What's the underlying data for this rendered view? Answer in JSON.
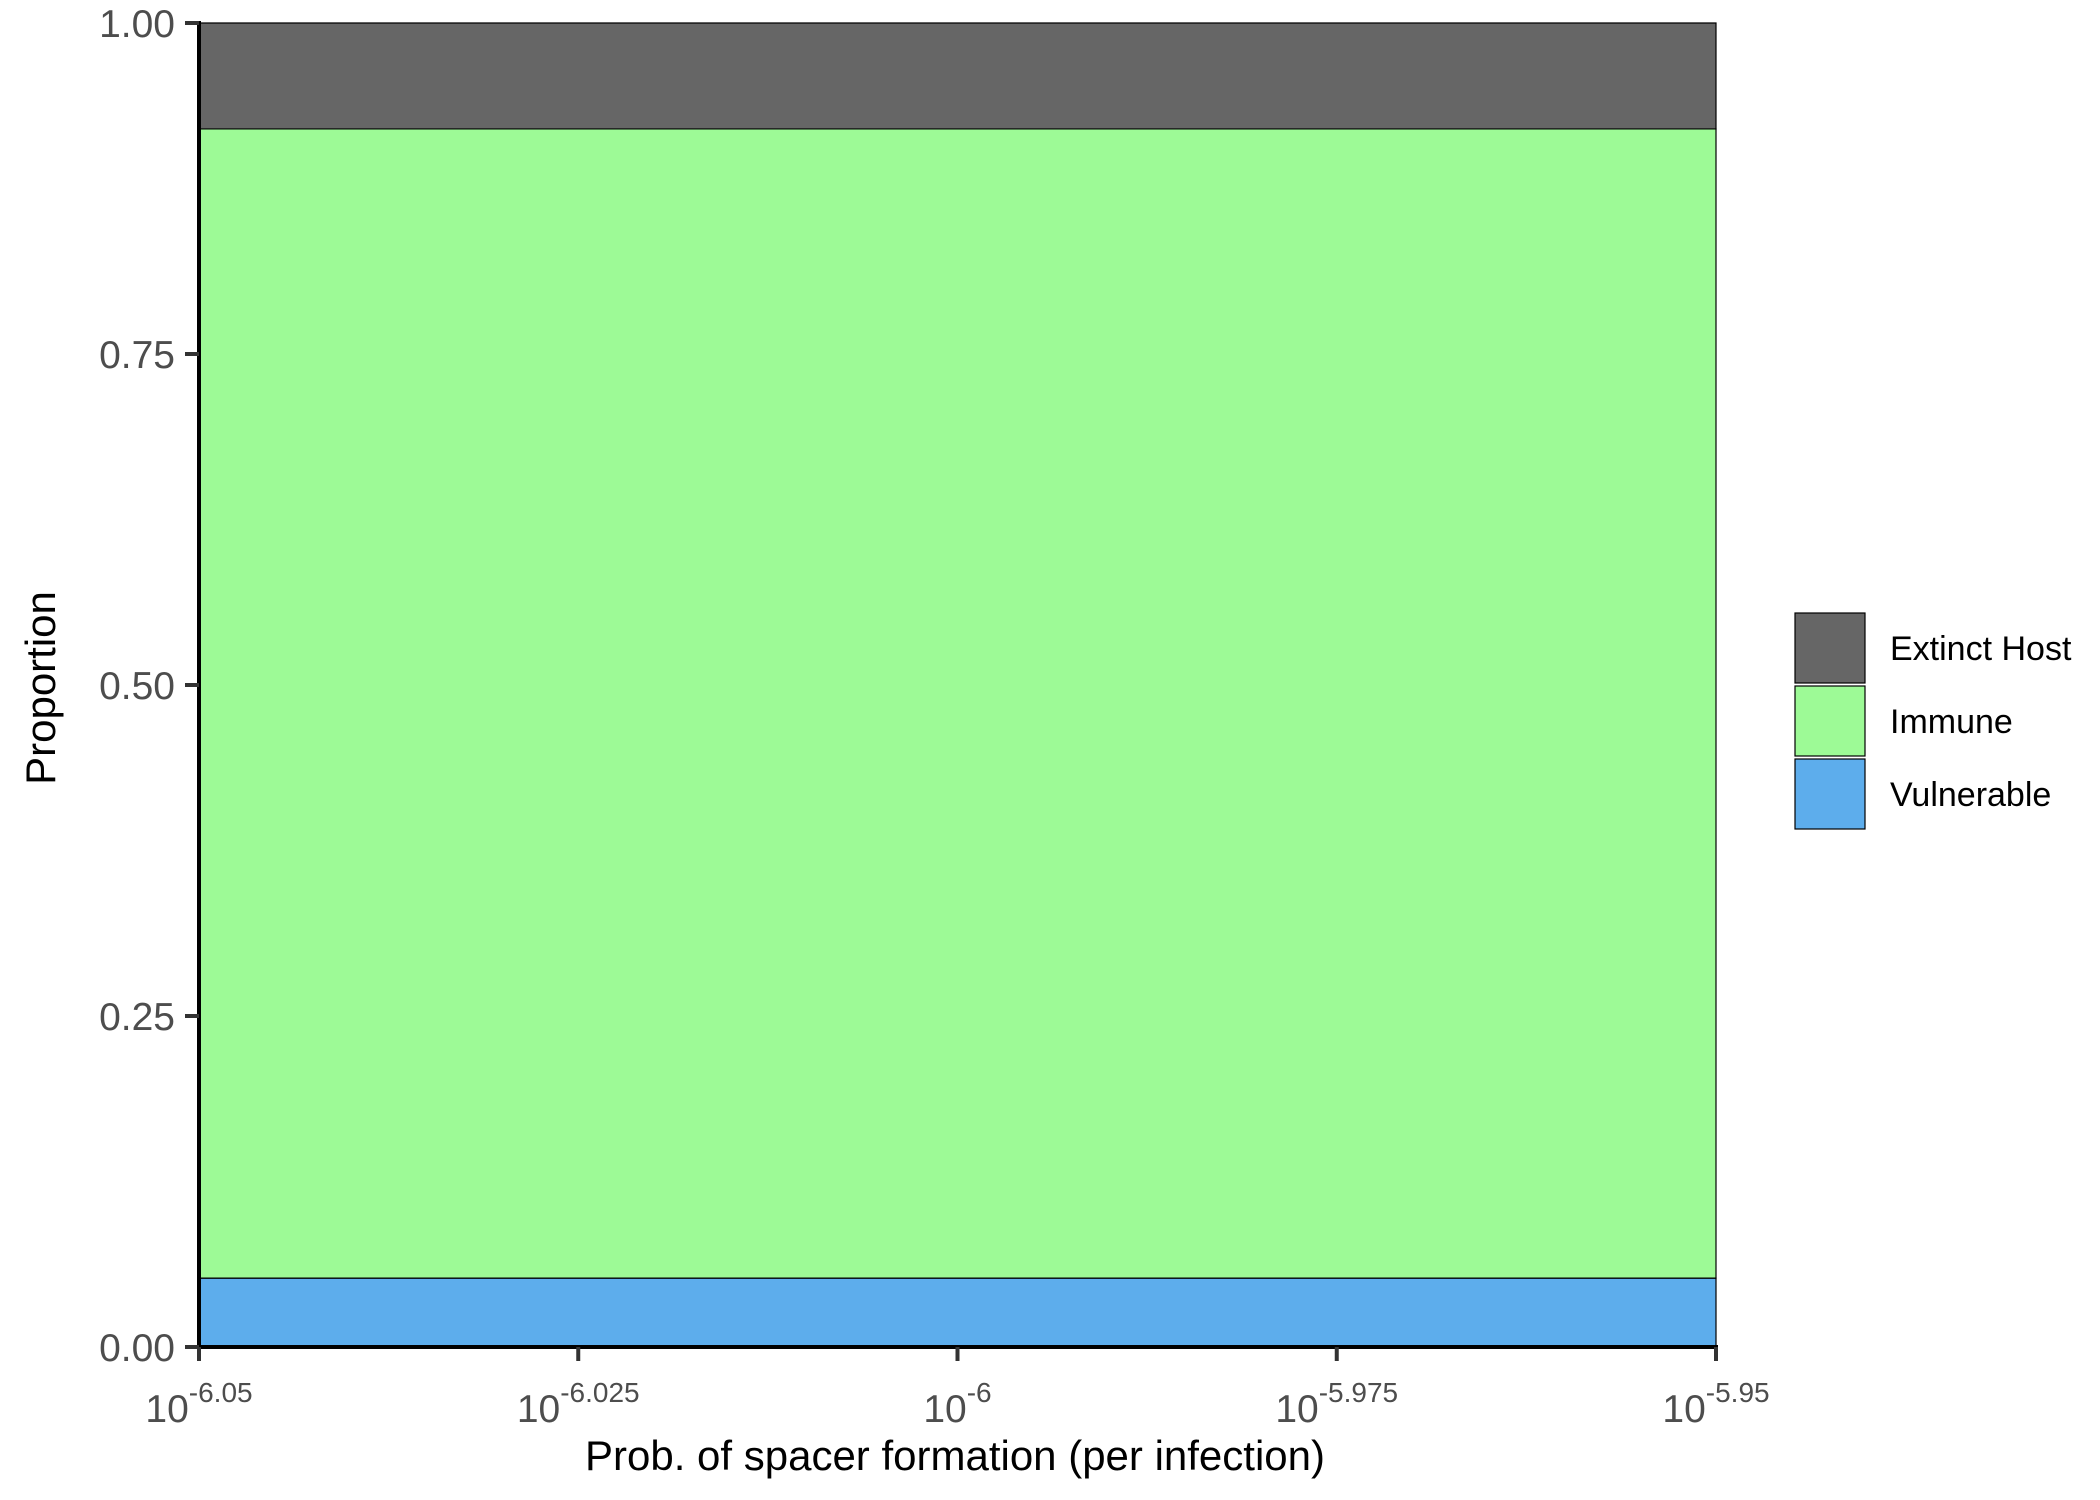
{
  "chart_data": {
    "type": "area",
    "title": "",
    "xlabel": "Prob. of spacer formation (per infection)",
    "ylabel": "Proportion",
    "x_scale": "log10",
    "xlim": [
      -6.05,
      -5.95
    ],
    "ylim": [
      0,
      1
    ],
    "x_ticks": [
      {
        "base": "10",
        "exponent": "-6.05",
        "value": -6.05
      },
      {
        "base": "10",
        "exponent": "-6.025",
        "value": -6.025
      },
      {
        "base": "10",
        "exponent": "-6",
        "value": -6
      },
      {
        "base": "10",
        "exponent": "-5.975",
        "value": -5.975
      },
      {
        "base": "10",
        "exponent": "-5.95",
        "value": -5.95
      }
    ],
    "y_ticks": [
      {
        "label": "0.00",
        "value": 0
      },
      {
        "label": "0.25",
        "value": 0.25
      },
      {
        "label": "0.50",
        "value": 0.5
      },
      {
        "label": "0.75",
        "value": 0.75
      },
      {
        "label": "1.00",
        "value": 1
      }
    ],
    "stacked": true,
    "series": [
      {
        "name": "Vulnerable",
        "color": "#5DADEC",
        "x": [
          -6.05,
          -5.95
        ],
        "values": [
          0.052,
          0.052
        ]
      },
      {
        "name": "Immune",
        "color": "#9DFA96",
        "x": [
          -6.05,
          -5.95
        ],
        "values": [
          0.868,
          0.868
        ]
      },
      {
        "name": "Extinct Host",
        "color": "#666666",
        "x": [
          -6.05,
          -5.95
        ],
        "values": [
          0.08,
          0.08
        ]
      }
    ],
    "legend": {
      "position": "right",
      "order": [
        "Extinct Host",
        "Immune",
        "Vulnerable"
      ]
    },
    "grid": false
  }
}
